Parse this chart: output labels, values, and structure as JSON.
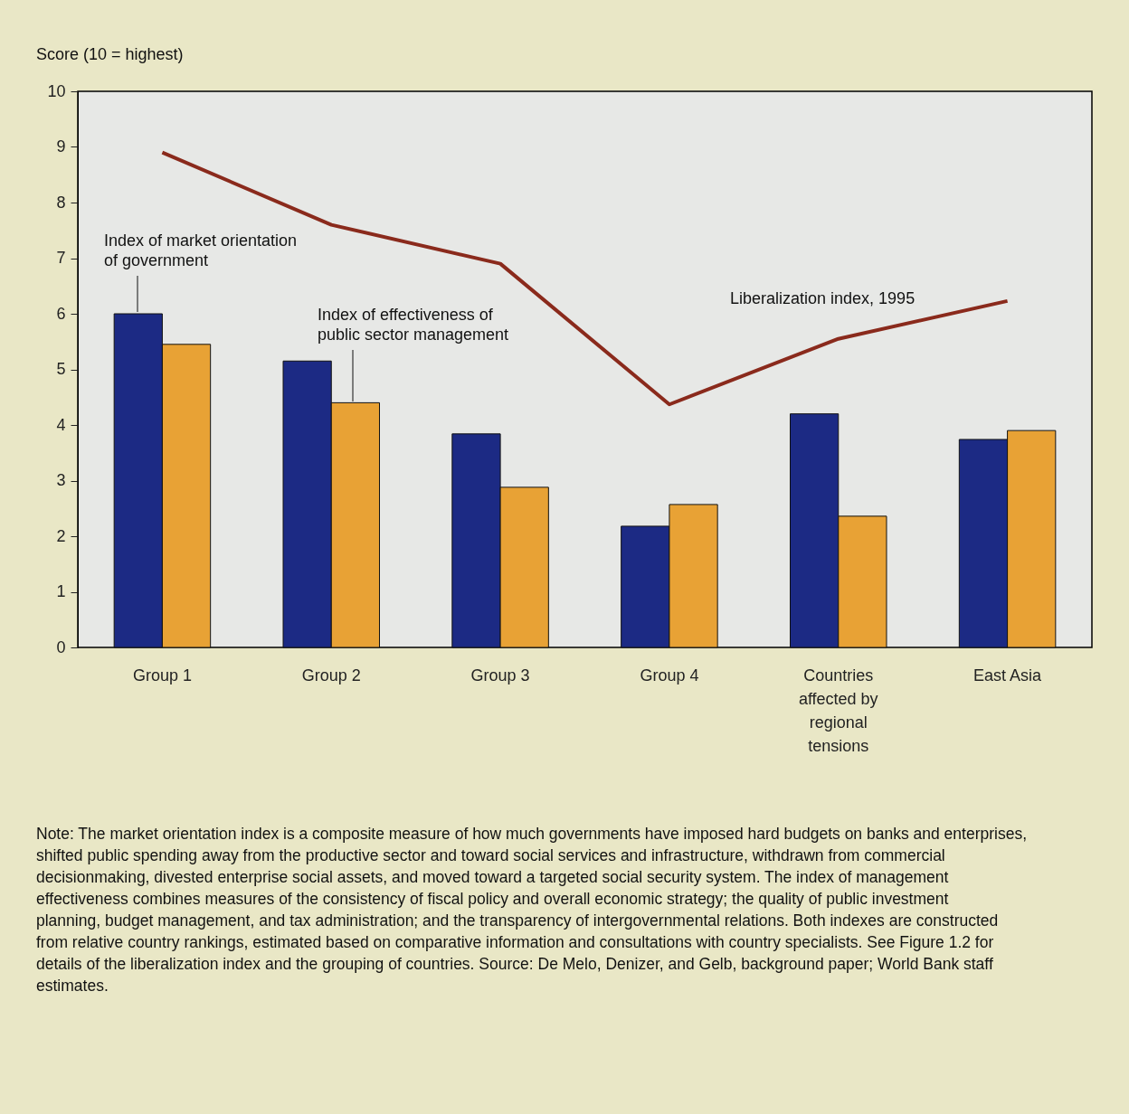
{
  "chart_data": {
    "type": "bar",
    "ylabel": "Score (10 = highest)",
    "categories": [
      "Group 1",
      "Group 2",
      "Group 3",
      "Group 4",
      "Countries affected by regional tensions",
      "East Asia"
    ],
    "ylim": [
      0,
      10
    ],
    "yticks": [
      0,
      1,
      2,
      3,
      4,
      5,
      6,
      7,
      8,
      9,
      10
    ],
    "grid": false,
    "series": [
      {
        "name": "Index of market orientation\nof government",
        "color": "#1c2a84",
        "values": [
          6.0,
          5.15,
          3.84,
          2.18,
          4.2,
          3.74
        ]
      },
      {
        "name": "Index of effectiveness of\npublic sector management",
        "color": "#e8a235",
        "values": [
          5.45,
          4.4,
          2.88,
          2.57,
          2.36,
          3.9
        ]
      },
      {
        "name": "Liberalization index, 1995",
        "type": "line",
        "color": "#8a2a1c",
        "values": [
          8.9,
          7.6,
          6.9,
          4.37,
          5.55,
          6.23
        ]
      }
    ],
    "annotations": [
      "Note: The market orientation index is a composite measure of how much governments have imposed hard budgets on banks and enterprises, shifted public spending away from the productive sector and toward social services and infrastructure, withdrawn from commercial decisionmaking, divested enterprise social assets, and moved toward a targeted social security system. The index of management effectiveness combines measures of the consistency of fiscal policy and overall economic strategy; the quality of public investment planning, budget management, and tax administration; and the transparency of intergovernmental relations. Both indexes are constructed from relative country rankings, estimated based on comparative information and consultations with country specialists. See Figure 1.2 for details of the liberalization index and the grouping of countries. Source: De Melo, Denizer, and Gelb, background paper; World Bank staff estimates."
    ]
  }
}
